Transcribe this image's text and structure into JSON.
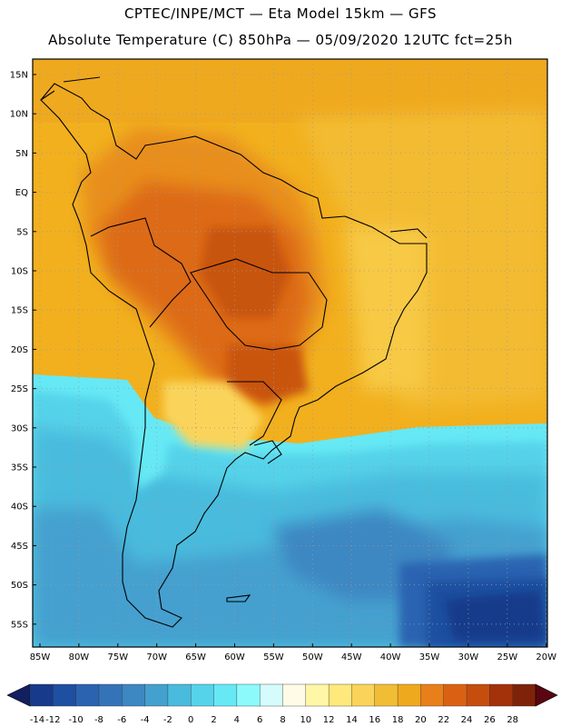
{
  "header": {
    "title_line1": "CPTEC/INPE/MCT —  Eta Model 15km — GFS",
    "title_line2": "Absolute Temperature (C) 850hPa — 05/09/2020 12UTC fct=25h"
  },
  "map": {
    "lat_labels": [
      "15N",
      "10N",
      "5N",
      "EQ",
      "5S",
      "10S",
      "15S",
      "20S",
      "25S",
      "30S",
      "35S",
      "40S",
      "45S",
      "50S",
      "55S"
    ],
    "lon_labels": [
      "85W",
      "80W",
      "75W",
      "70W",
      "65W",
      "60W",
      "55W",
      "50W",
      "45W",
      "40W",
      "35W",
      "30W",
      "25W",
      "20W"
    ],
    "grid": "dotted",
    "zones": {
      "hot_core": "24-26",
      "warm": "20-22",
      "mild": "16-18",
      "cool": "2-6",
      "cold": "-4 to -10",
      "coldest": "-12 to -14"
    }
  },
  "colorbar": {
    "labels": [
      "-14",
      "-12",
      "-10",
      "-8",
      "-6",
      "-4",
      "-2",
      "0",
      "2",
      "4",
      "6",
      "8",
      "10",
      "12",
      "14",
      "16",
      "18",
      "20",
      "22",
      "24",
      "26",
      "28"
    ],
    "colors": [
      "#173a8a",
      "#1f4fa0",
      "#2b63b1",
      "#3473b8",
      "#3d87c2",
      "#44a0cf",
      "#49bbdd",
      "#55d3ea",
      "#66e9f5",
      "#8cfafb",
      "#d5fbfd",
      "#fffbe6",
      "#fff6a6",
      "#ffe97c",
      "#fad45a",
      "#f0bd35",
      "#efa91f",
      "#e87f1a",
      "#da6113",
      "#c54d0e",
      "#a3320a",
      "#7e2309"
    ],
    "low_arrow_color": "#121f60",
    "high_arrow_color": "#5a0612"
  }
}
